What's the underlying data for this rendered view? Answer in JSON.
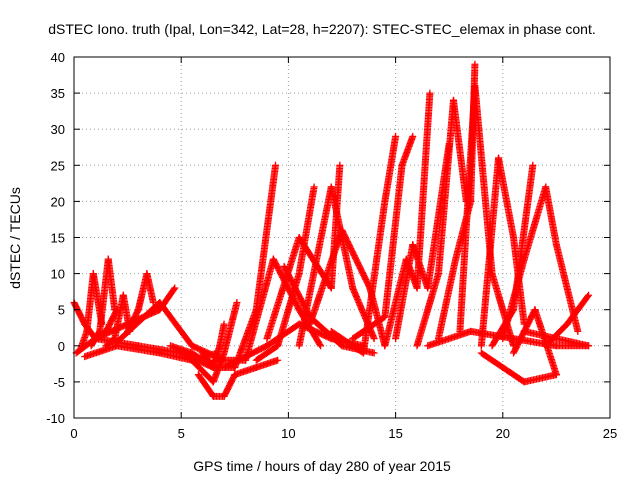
{
  "chart_data": {
    "type": "scatter",
    "title": "dSTEC Iono. truth (Ipal, Lon=342, Lat=28, h=2207): STEC-STEC_elemax in phase cont.",
    "xlabel": "GPS time / hours of day 280 of year 2015",
    "ylabel": "dSTEC  / TECUs",
    "xlim": [
      0,
      25
    ],
    "ylim": [
      -10,
      40
    ],
    "xticks": [
      0,
      5,
      10,
      15,
      20,
      25
    ],
    "yticks": [
      -10,
      -5,
      0,
      5,
      10,
      15,
      20,
      25,
      30,
      35,
      40
    ],
    "grid": true,
    "marker": "+",
    "color": "#ff0000",
    "series": [
      {
        "x": [
          0.0,
          0.5,
          1.0,
          1.5,
          2.0
        ],
        "y": [
          6,
          3,
          1,
          2,
          5
        ]
      },
      {
        "x": [
          0.3,
          0.6,
          0.9,
          1.3
        ],
        "y": [
          -0.5,
          2,
          10,
          3
        ]
      },
      {
        "x": [
          0.8,
          1.2,
          1.6,
          1.9
        ],
        "y": [
          0,
          2,
          12,
          5
        ]
      },
      {
        "x": [
          1.5,
          1.9,
          2.3,
          2.6
        ],
        "y": [
          0,
          1,
          7,
          2
        ]
      },
      {
        "x": [
          0.1,
          1.0,
          2.5,
          4.0,
          4.7
        ],
        "y": [
          -1,
          1,
          3,
          5,
          8
        ]
      },
      {
        "x": [
          2.5,
          3.0,
          3.4,
          3.7
        ],
        "y": [
          2,
          5,
          10,
          6
        ]
      },
      {
        "x": [
          0.5,
          2.0,
          4.0,
          5.5,
          6.7
        ],
        "y": [
          -1.5,
          0,
          -1,
          -2,
          -1
        ]
      },
      {
        "x": [
          1.0,
          3.0,
          5.0,
          6.5
        ],
        "y": [
          1,
          0,
          -1,
          -3
        ]
      },
      {
        "x": [
          2.0,
          4.0,
          5.5,
          7.0
        ],
        "y": [
          0.5,
          6,
          0,
          -2
        ]
      },
      {
        "x": [
          4.5,
          5.5,
          6.5,
          7.5,
          8.5,
          9.4
        ],
        "y": [
          0,
          -1,
          -3,
          -3,
          5,
          25
        ]
      },
      {
        "x": [
          5.5,
          6.5,
          7.0,
          7.6
        ],
        "y": [
          -2,
          -5,
          -1,
          6
        ]
      },
      {
        "x": [
          6.0,
          6.5,
          6.8,
          7.0
        ],
        "y": [
          -1,
          -3,
          0,
          3
        ]
      },
      {
        "x": [
          5.8,
          6.5,
          7.0,
          7.5,
          8.5,
          9.5
        ],
        "y": [
          -4,
          -7,
          -7,
          -4,
          -3,
          -2
        ]
      },
      {
        "x": [
          6.5,
          8.0,
          9.3,
          10.5,
          11.5
        ],
        "y": [
          -2,
          -2,
          12,
          5,
          0
        ]
      },
      {
        "x": [
          8.5,
          9.5,
          10.5,
          11.2
        ],
        "y": [
          -2,
          0,
          10,
          22
        ]
      },
      {
        "x": [
          9.8,
          11.0,
          12.5,
          14.0
        ],
        "y": [
          11,
          4,
          0,
          -1
        ]
      },
      {
        "x": [
          9.0,
          10.5,
          12.0,
          12.4
        ],
        "y": [
          1,
          15,
          8,
          25
        ]
      },
      {
        "x": [
          7.0,
          9.0,
          10.5,
          12.0,
          13.5
        ],
        "y": [
          -3,
          0,
          3,
          1,
          0
        ]
      },
      {
        "x": [
          10.5,
          12.0,
          13.0,
          14.0
        ],
        "y": [
          0,
          22,
          8,
          1
        ]
      },
      {
        "x": [
          11.0,
          12.5,
          13.8,
          14.5
        ],
        "y": [
          3,
          16,
          8,
          0
        ]
      },
      {
        "x": [
          12.0,
          13.5,
          14.5,
          15.0
        ],
        "y": [
          2,
          -1,
          20,
          29
        ]
      },
      {
        "x": [
          13.0,
          14.5,
          15.3,
          15.8
        ],
        "y": [
          1,
          4,
          25,
          29
        ]
      },
      {
        "x": [
          14.5,
          15.5,
          16.0,
          16.6
        ],
        "y": [
          0,
          12,
          8,
          35
        ]
      },
      {
        "x": [
          15.0,
          15.8,
          16.5,
          17.5
        ],
        "y": [
          1,
          14,
          8,
          28
        ]
      },
      {
        "x": [
          16.0,
          17.0,
          17.7,
          18.3
        ],
        "y": [
          0,
          10,
          34,
          20
        ]
      },
      {
        "x": [
          17.0,
          17.8,
          18.5,
          18.7
        ],
        "y": [
          1,
          12,
          20,
          39
        ]
      },
      {
        "x": [
          18.0,
          18.7,
          19.5,
          20.5
        ],
        "y": [
          2,
          36,
          10,
          0
        ]
      },
      {
        "x": [
          19.0,
          19.8,
          20.5,
          21.0
        ],
        "y": [
          0,
          26,
          15,
          3
        ]
      },
      {
        "x": [
          19.5,
          20.5,
          21.4
        ],
        "y": [
          0,
          5,
          25
        ]
      },
      {
        "x": [
          20.0,
          21.0,
          22.0,
          22.5,
          23.5
        ],
        "y": [
          1,
          12,
          22,
          14,
          2
        ]
      },
      {
        "x": [
          20.5,
          21.5,
          22.5
        ],
        "y": [
          -1,
          5,
          -4
        ]
      },
      {
        "x": [
          19.0,
          20.0,
          21.0,
          22.5
        ],
        "y": [
          -1,
          -3,
          -5,
          -4
        ]
      },
      {
        "x": [
          16.5,
          18.5,
          20.5,
          22.5,
          24.0
        ],
        "y": [
          0,
          2,
          1,
          0,
          0
        ]
      },
      {
        "x": [
          22.0,
          23.0,
          24.0
        ],
        "y": [
          0,
          3,
          7
        ]
      },
      {
        "x": [
          21.0,
          22.5,
          24.0
        ],
        "y": [
          2,
          1,
          0
        ]
      }
    ]
  }
}
